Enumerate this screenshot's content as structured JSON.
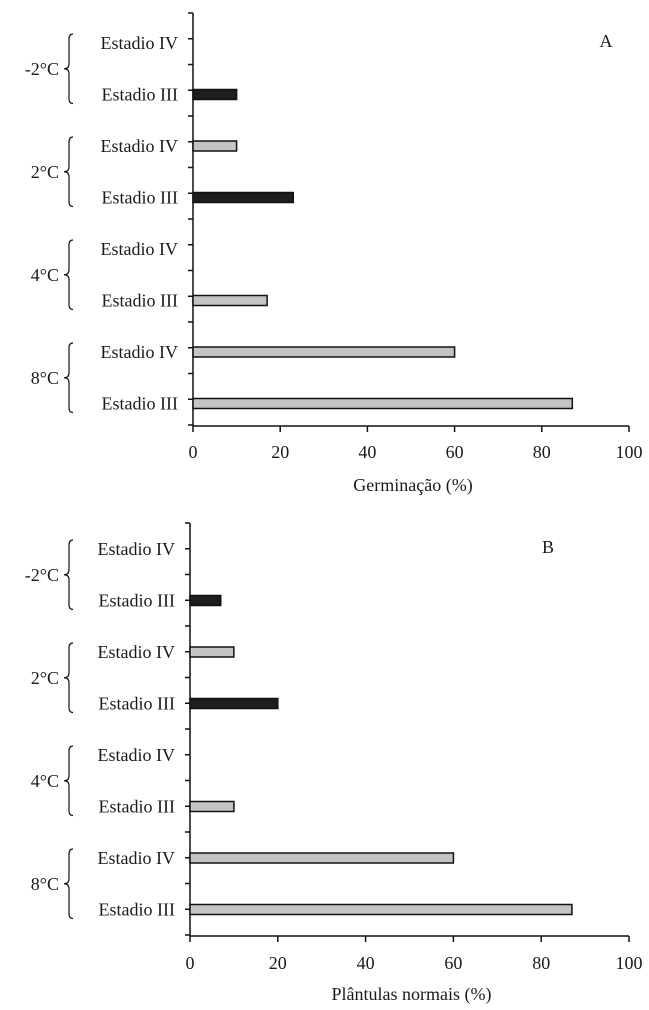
{
  "colors": {
    "light_bar": "#c4c4c4",
    "dark_bar": "#1e1e1e"
  },
  "chart_data": [
    {
      "type": "bar",
      "orientation": "horizontal",
      "panel_label": "A",
      "xlabel": "Germinação (%)",
      "xlim": [
        0,
        100
      ],
      "xticks": [
        0,
        20,
        40,
        60,
        80,
        100
      ],
      "groups": [
        {
          "label": "-2°C",
          "rows": [
            {
              "label": "Estadio IV",
              "value": 0,
              "fill": "dark"
            },
            {
              "label": "Estadio III",
              "value": 10,
              "fill": "dark"
            }
          ]
        },
        {
          "label": "2°C",
          "rows": [
            {
              "label": "Estadio IV",
              "value": 10,
              "fill": "light"
            },
            {
              "label": "Estadio III",
              "value": 23,
              "fill": "dark"
            }
          ]
        },
        {
          "label": "4°C",
          "rows": [
            {
              "label": "Estadio IV",
              "value": 0,
              "fill": "light"
            },
            {
              "label": "Estadio III",
              "value": 17,
              "fill": "light"
            }
          ]
        },
        {
          "label": "8°C",
          "rows": [
            {
              "label": "Estadio IV",
              "value": 60,
              "fill": "light"
            },
            {
              "label": "Estadio III",
              "value": 87,
              "fill": "light"
            }
          ]
        }
      ]
    },
    {
      "type": "bar",
      "orientation": "horizontal",
      "panel_label": "B",
      "xlabel": "Plântulas normais (%)",
      "xlim": [
        0,
        100
      ],
      "xticks": [
        0,
        20,
        40,
        60,
        80,
        100
      ],
      "groups": [
        {
          "label": "-2°C",
          "rows": [
            {
              "label": "Estadio IV",
              "value": 0,
              "fill": "dark"
            },
            {
              "label": "Estadio III",
              "value": 7,
              "fill": "dark"
            }
          ]
        },
        {
          "label": "2°C",
          "rows": [
            {
              "label": "Estadio IV",
              "value": 10,
              "fill": "light"
            },
            {
              "label": "Estadio III",
              "value": 20,
              "fill": "dark"
            }
          ]
        },
        {
          "label": "4°C",
          "rows": [
            {
              "label": "Estadio IV",
              "value": 0,
              "fill": "light"
            },
            {
              "label": "Estadio III",
              "value": 10,
              "fill": "light"
            }
          ]
        },
        {
          "label": "8°C",
          "rows": [
            {
              "label": "Estadio IV",
              "value": 60,
              "fill": "light"
            },
            {
              "label": "Estadio III",
              "value": 87,
              "fill": "light"
            }
          ]
        }
      ]
    }
  ]
}
